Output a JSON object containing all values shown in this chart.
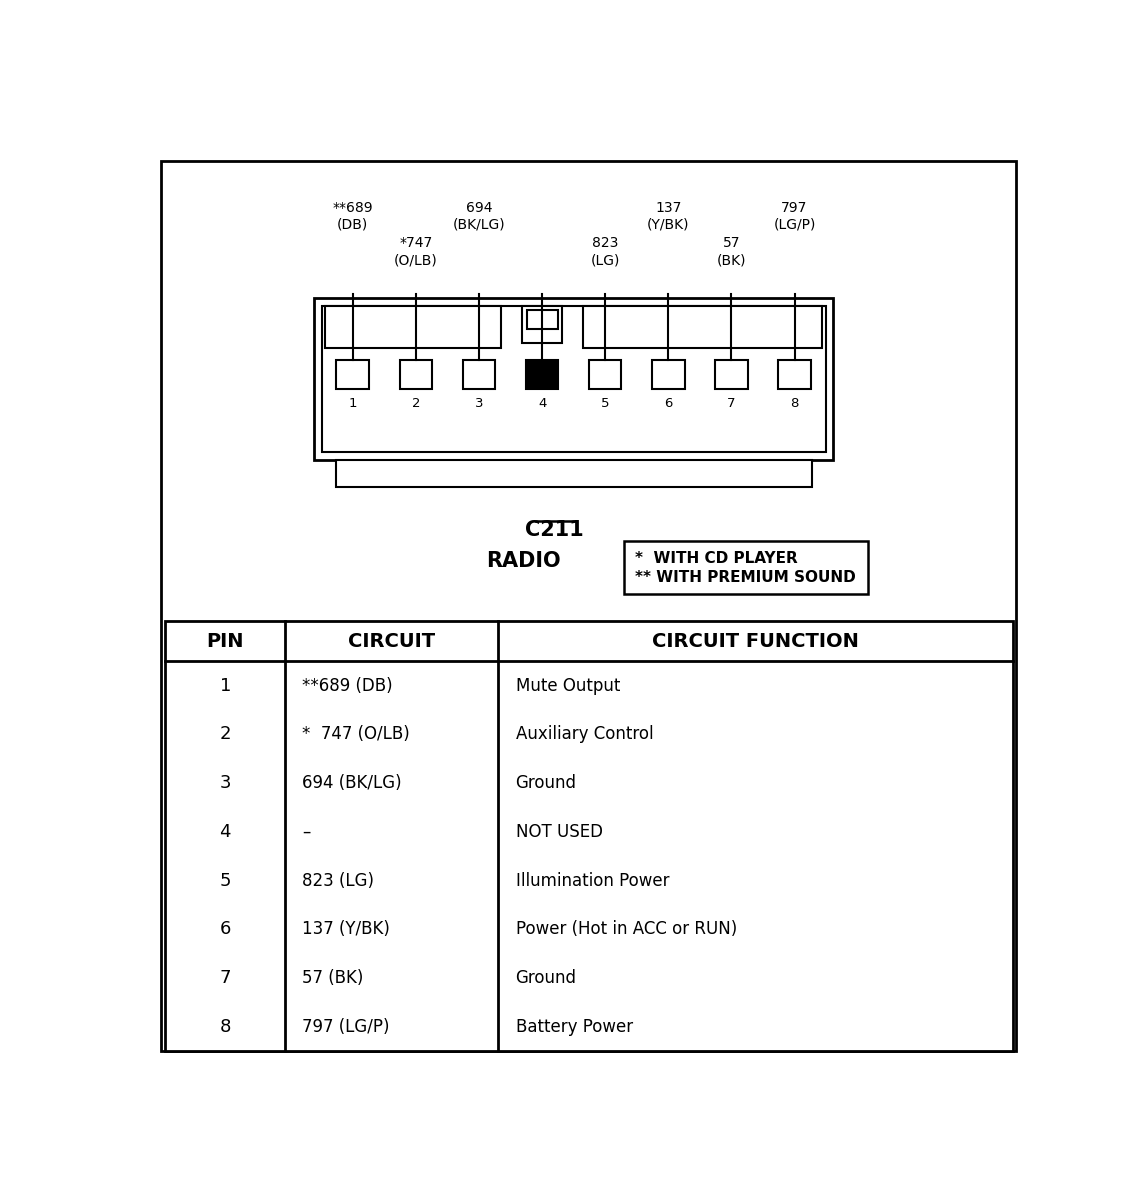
{
  "connector_label": "C211",
  "connector_sublabel": "RADIO",
  "legend_line1": "*  WITH CD PLAYER",
  "legend_line2": "** WITH PREMIUM SOUND",
  "wire_labels_top": [
    {
      "text": "**689",
      "sub": "(DB)",
      "pin": 1,
      "row": "upper"
    },
    {
      "text": "*747",
      "sub": "(O/LB)",
      "pin": 2,
      "row": "lower"
    },
    {
      "text": "694",
      "sub": "(BK/LG)",
      "pin": 3,
      "row": "upper"
    },
    {
      "text": "823",
      "sub": "(LG)",
      "pin": 5,
      "row": "lower"
    },
    {
      "text": "137",
      "sub": "(Y/BK)",
      "pin": 6,
      "row": "upper"
    },
    {
      "text": "57",
      "sub": "(BK)",
      "pin": 7,
      "row": "lower"
    },
    {
      "text": "797",
      "sub": "(LG/P)",
      "pin": 8,
      "row": "upper"
    }
  ],
  "table_headers": [
    "PIN",
    "CIRCUIT",
    "CIRCUIT FUNCTION"
  ],
  "table_rows": [
    [
      "1",
      "**689 (DB)",
      "Mute Output"
    ],
    [
      "2",
      "*  747 (O/LB)",
      "Auxiliary Control"
    ],
    [
      "3",
      "694 (BK/LG)",
      "Ground"
    ],
    [
      "4",
      "–",
      "NOT USED"
    ],
    [
      "5",
      "823 (LG)",
      "Illumination Power"
    ],
    [
      "6",
      "137 (Y/BK)",
      "Power (Hot in ACC or RUN)"
    ],
    [
      "7",
      "57 (BK)",
      "Ground"
    ],
    [
      "8",
      "797 (LG/P)",
      "Battery Power"
    ]
  ]
}
